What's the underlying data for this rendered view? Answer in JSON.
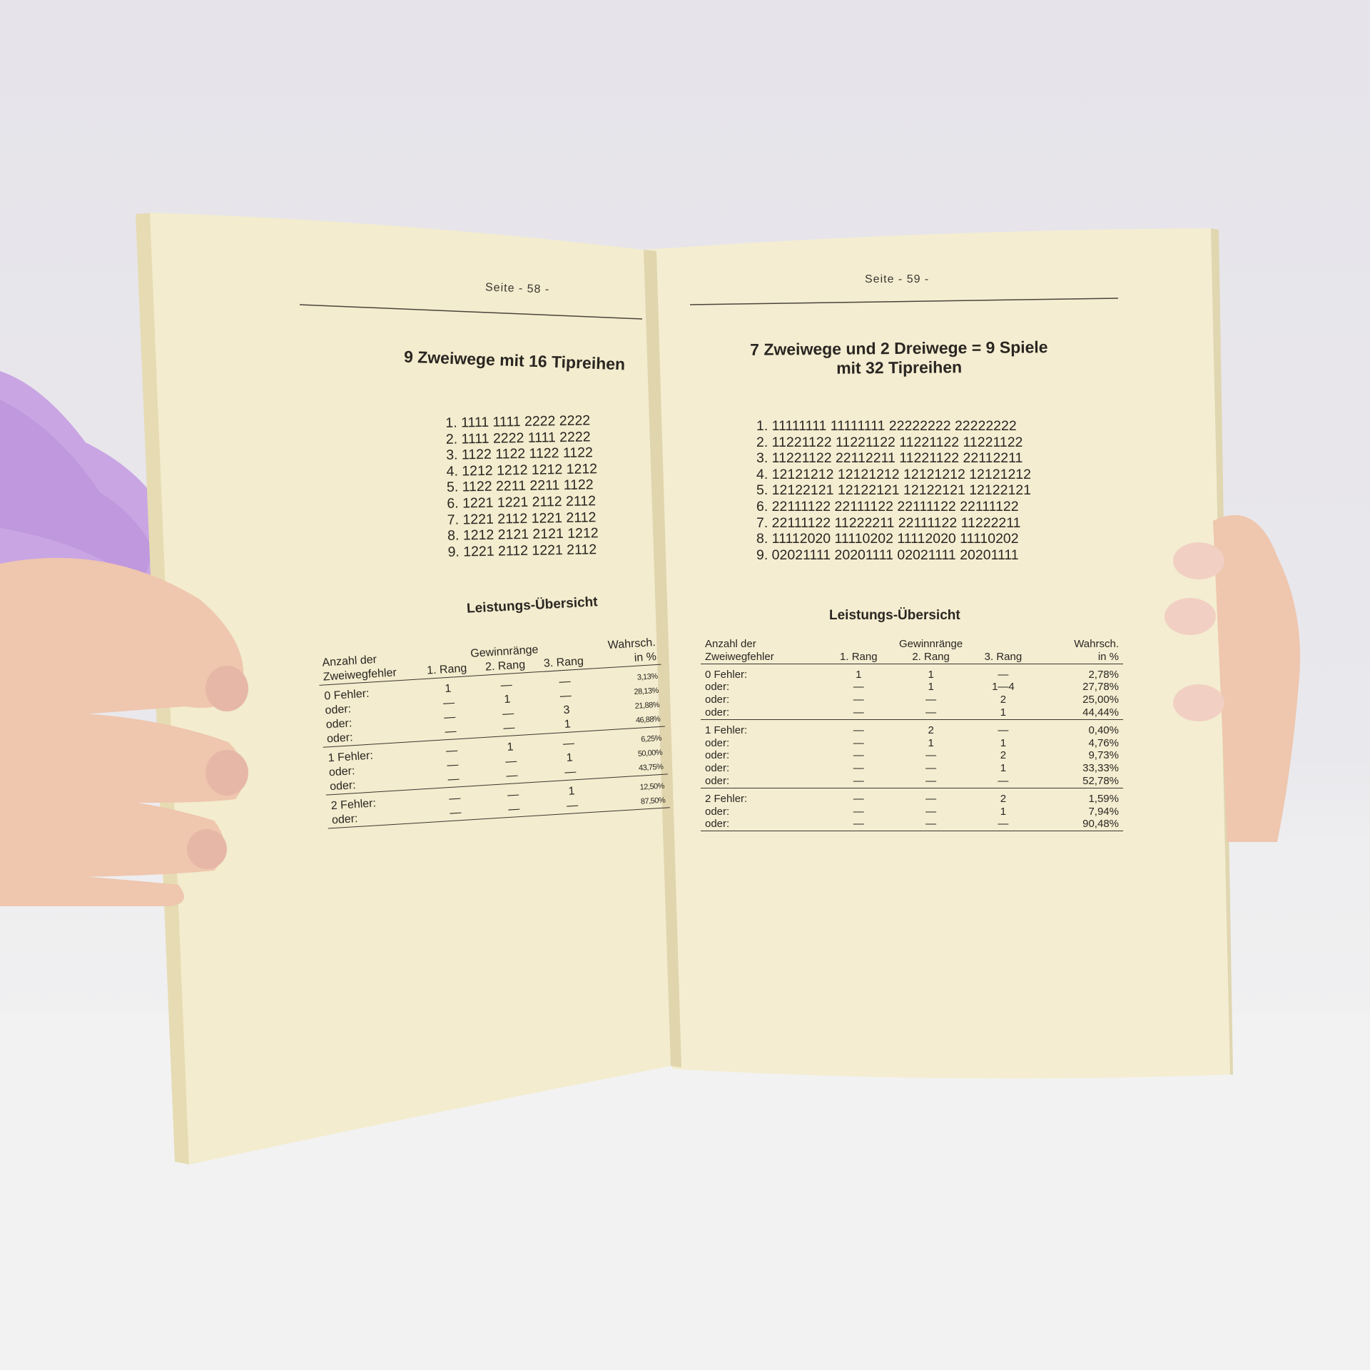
{
  "left_page": {
    "page_label": "Seite - 58 -",
    "title": "9 Zweiwege mit 16 Tipreihen",
    "rows": [
      "1. 1111 1111 2222 2222",
      "2. 1111 2222 1111 2222",
      "3. 1122 1122 1122 1122",
      "4. 1212 1212 1212 1212",
      "5. 1122 2211 2211 1122",
      "6. 1221 1221 2112 2112",
      "7. 1221 2112 1221 2112",
      "8. 1212 2121 2121 1212",
      "9. 1221 2112 1221 2112"
    ],
    "summary_title": "Leistungs-Übersicht",
    "table": {
      "col_anzahl": [
        "Anzahl der",
        "Zweiwegfehler"
      ],
      "col_group": "Gewinnränge",
      "col_ranks": [
        "1. Rang",
        "2. Rang",
        "3. Rang"
      ],
      "col_prob": [
        "Wahrsch.",
        "in %"
      ],
      "groups": [
        {
          "rows": [
            {
              "label": "0 Fehler:",
              "r1": "1",
              "r2": "—",
              "r3": "—",
              "p": "3,13%"
            },
            {
              "label": "oder:",
              "r1": "—",
              "r2": "1",
              "r3": "—",
              "p": "28,13%"
            },
            {
              "label": "oder:",
              "r1": "—",
              "r2": "—",
              "r3": "3",
              "p": "21,88%"
            },
            {
              "label": "oder:",
              "r1": "—",
              "r2": "—",
              "r3": "1",
              "p": "46,88%"
            }
          ]
        },
        {
          "rows": [
            {
              "label": "1 Fehler:",
              "r1": "—",
              "r2": "1",
              "r3": "—",
              "p": "6,25%"
            },
            {
              "label": "oder:",
              "r1": "—",
              "r2": "—",
              "r3": "1",
              "p": "50,00%"
            },
            {
              "label": "oder:",
              "r1": "—",
              "r2": "—",
              "r3": "—",
              "p": "43,75%"
            }
          ]
        },
        {
          "rows": [
            {
              "label": "2 Fehler:",
              "r1": "—",
              "r2": "—",
              "r3": "1",
              "p": "12,50%"
            },
            {
              "label": "oder:",
              "r1": "—",
              "r2": "—",
              "r3": "—",
              "p": "87,50%"
            }
          ]
        }
      ]
    }
  },
  "right_page": {
    "page_label": "Seite - 59 -",
    "title_line1": "7 Zweiwege und 2 Dreiwege  =  9 Spiele",
    "title_line2": "mit 32 Tipreihen",
    "rows": [
      "1. 11111111 11111111 22222222 22222222",
      "2. 11221122 11221122 11221122 11221122",
      "3. 11221122 22112211 11221122 22112211",
      "4. 12121212 12121212 12121212 12121212",
      "5. 12122121 12122121 12122121 12122121",
      "6. 22111122 22111122 22111122 22111122",
      "7. 22111122 11222211 22111122 11222211",
      "8. 11112020 11110202 11112020 11110202",
      "9. 02021111 20201111 02021111 20201111"
    ],
    "summary_title": "Leistungs-Übersicht",
    "table": {
      "col_anzahl": [
        "Anzahl der",
        "Zweiwegfehler"
      ],
      "col_group": "Gewinnränge",
      "col_ranks": [
        "1. Rang",
        "2. Rang",
        "3. Rang"
      ],
      "col_prob": [
        "Wahrsch.",
        "in %"
      ],
      "groups": [
        {
          "rows": [
            {
              "label": "0 Fehler:",
              "r1": "1",
              "r2": "1",
              "r3": "—",
              "p": "2,78%"
            },
            {
              "label": "oder:",
              "r1": "—",
              "r2": "1",
              "r3": "1—4",
              "p": "27,78%"
            },
            {
              "label": "oder:",
              "r1": "—",
              "r2": "—",
              "r3": "2",
              "p": "25,00%"
            },
            {
              "label": "oder:",
              "r1": "—",
              "r2": "—",
              "r3": "1",
              "p": "44,44%"
            }
          ]
        },
        {
          "rows": [
            {
              "label": "1 Fehler:",
              "r1": "—",
              "r2": "2",
              "r3": "—",
              "p": "0,40%"
            },
            {
              "label": "oder:",
              "r1": "—",
              "r2": "1",
              "r3": "1",
              "p": "4,76%"
            },
            {
              "label": "oder:",
              "r1": "—",
              "r2": "—",
              "r3": "2",
              "p": "9,73%"
            },
            {
              "label": "oder:",
              "r1": "—",
              "r2": "—",
              "r3": "1",
              "p": "33,33%"
            },
            {
              "label": "oder:",
              "r1": "—",
              "r2": "—",
              "r3": "—",
              "p": "52,78%"
            }
          ]
        },
        {
          "rows": [
            {
              "label": "2 Fehler:",
              "r1": "—",
              "r2": "—",
              "r3": "2",
              "p": "1,59%"
            },
            {
              "label": "oder:",
              "r1": "—",
              "r2": "—",
              "r3": "1",
              "p": "7,94%"
            },
            {
              "label": "oder:",
              "r1": "—",
              "r2": "—",
              "r3": "—",
              "p": "90,48%"
            }
          ]
        }
      ]
    }
  },
  "colors": {
    "paper": "#f3ecce",
    "paper_edge": "#e9dfb8",
    "skin": "#efc6ae",
    "sleeve": "#c9a6e3",
    "background": "#e7e6eb"
  }
}
